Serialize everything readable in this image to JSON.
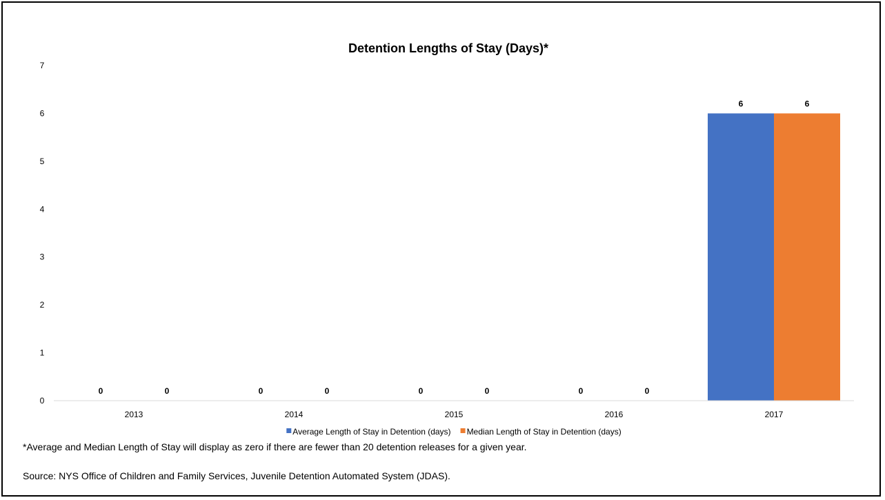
{
  "chart_data": {
    "type": "bar",
    "title": "Detention Lengths of Stay (Days)*",
    "categories": [
      "2013",
      "2014",
      "2015",
      "2016",
      "2017"
    ],
    "series": [
      {
        "name": "Average Length of Stay in Detention (days)",
        "values": [
          0,
          0,
          0,
          0,
          6
        ],
        "color": "#4472C4"
      },
      {
        "name": "Median Length of Stay in Detention (days)",
        "values": [
          0,
          0,
          0,
          0,
          6
        ],
        "color": "#ED7D31"
      }
    ],
    "ylim": [
      0,
      7
    ],
    "yticks": [
      0,
      1,
      2,
      3,
      4,
      5,
      6,
      7
    ],
    "grid": false,
    "legend_position": "bottom",
    "xlabel": "",
    "ylabel": ""
  },
  "notes": {
    "footnote": "*Average and Median Length of Stay will display as zero if there are fewer than 20 detention releases for a given year.",
    "source": "Source: NYS Office of Children and Family Services, Juvenile Detention Automated System (JDAS)."
  }
}
